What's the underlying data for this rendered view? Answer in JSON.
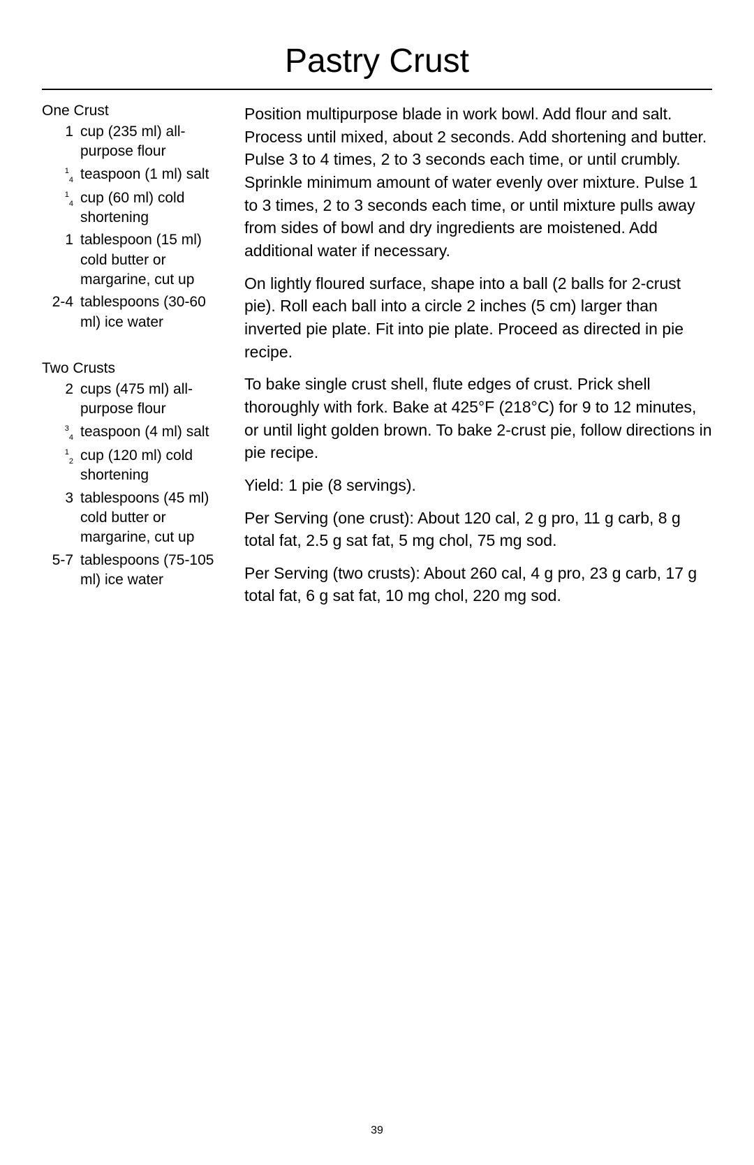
{
  "title": "Pastry Crust",
  "pageNumber": "39",
  "ingredients": {
    "group1": {
      "heading": "One Crust",
      "items": [
        {
          "qty": "1",
          "text": "cup (235 ml) all-purpose flour"
        },
        {
          "qty": "1/4",
          "text": "teaspoon (1 ml) salt"
        },
        {
          "qty": "1/4",
          "text": "cup (60 ml) cold shortening"
        },
        {
          "qty": "1",
          "text": "tablespoon (15 ml) cold butter or margarine, cut up"
        },
        {
          "qty": "2-4",
          "text": "tablespoons (30-60 ml) ice water"
        }
      ]
    },
    "group2": {
      "heading": "Two Crusts",
      "items": [
        {
          "qty": "2",
          "text": "cups (475 ml) all-purpose flour"
        },
        {
          "qty": "3/4",
          "text": "teaspoon (4 ml) salt"
        },
        {
          "qty": "1/2",
          "text": "cup (120 ml) cold shortening"
        },
        {
          "qty": "3",
          "text": "tablespoons (45 ml) cold butter or margarine, cut up"
        },
        {
          "qty": "5-7",
          "text": "tablespoons (75-105 ml) ice water"
        }
      ]
    }
  },
  "instructions": [
    "Position multipurpose blade in work bowl. Add flour and salt. Process until mixed, about 2 seconds. Add shortening and butter. Pulse 3 to 4 times, 2 to 3 seconds each time, or until crumbly. Sprinkle minimum amount of water evenly over mixture. Pulse 1 to 3 times, 2 to 3 seconds each time, or until mixture pulls away from sides of bowl and dry ingredients are moistened. Add additional water if necessary.",
    "On lightly floured surface, shape into a ball (2 balls for 2-crust pie). Roll each ball into a circle 2 inches (5 cm) larger than inverted pie plate. Fit into pie plate. Proceed as directed in pie recipe.",
    "To bake single crust shell, flute edges of crust. Prick shell thoroughly with fork. Bake at 425°F (218°C) for 9 to 12 minutes, or until light golden brown. To bake 2-crust pie, follow directions in pie recipe.",
    "Yield: 1 pie (8 servings).",
    "Per Serving (one crust): About 120 cal, 2 g pro, 11 g carb, 8 g total fat, 2.5 g sat fat, 5 mg chol, 75 mg sod.",
    "Per Serving (two crusts): About 260 cal, 4 g pro, 23 g carb, 17 g total fat, 6 g sat fat, 10 mg chol, 220 mg sod."
  ],
  "styling": {
    "pageWidth": 1080,
    "pageHeight": 1669,
    "background": "#ffffff",
    "textColor": "#000000",
    "titleFontSize": 48,
    "bodyFontSize": 23,
    "ingredientFontSize": 21,
    "lineHeight": 1.42,
    "ruleColor": "#000000",
    "fontFamily": "Arial, Helvetica, sans-serif"
  }
}
